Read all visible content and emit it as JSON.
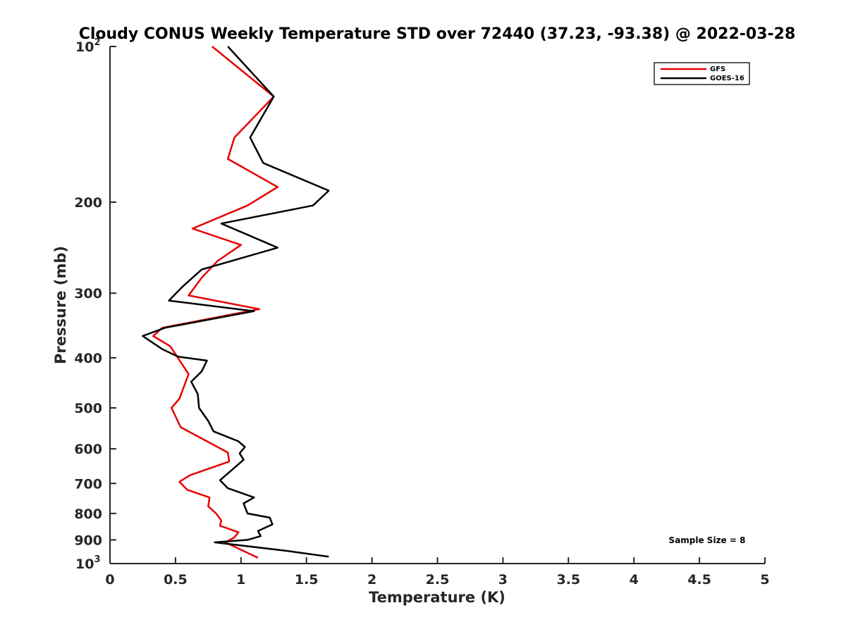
{
  "chart_data": {
    "type": "line",
    "title": "Cloudy CONUS Weekly Temperature STD over 72440 (37.23, -93.38) @ 2022-03-28",
    "xlabel": "Temperature (K)",
    "ylabel": "Pressure (mb)",
    "xlim": [
      0,
      5
    ],
    "ylim": [
      100,
      1000
    ],
    "yscale": "log",
    "y_reversed": true,
    "x_ticks": [
      "0",
      "0.5",
      "1",
      "1.5",
      "2",
      "2.5",
      "3",
      "3.5",
      "4",
      "4.5",
      "5"
    ],
    "x_tick_values": [
      0,
      0.5,
      1,
      1.5,
      2,
      2.5,
      3,
      3.5,
      4,
      4.5,
      5
    ],
    "y_tick_values": [
      100,
      200,
      300,
      400,
      500,
      600,
      700,
      800,
      900,
      1000
    ],
    "y_ticks": [
      {
        "base": "10",
        "exp": "2"
      },
      {
        "base": "200",
        "exp": ""
      },
      {
        "base": "300",
        "exp": ""
      },
      {
        "base": "400",
        "exp": ""
      },
      {
        "base": "500",
        "exp": ""
      },
      {
        "base": "600",
        "exp": ""
      },
      {
        "base": "700",
        "exp": ""
      },
      {
        "base": "800",
        "exp": ""
      },
      {
        "base": "900",
        "exp": ""
      },
      {
        "base": "10",
        "exp": "3"
      }
    ],
    "grid": false,
    "legend_position": "top-right",
    "annotation": "Sample Size = 8",
    "series": [
      {
        "name": "GFS",
        "color": "#e60000",
        "points": [
          [
            0.78,
            100
          ],
          [
            1.25,
            125
          ],
          [
            0.95,
            150
          ],
          [
            0.9,
            165
          ],
          [
            1.28,
            187
          ],
          [
            1.05,
            203
          ],
          [
            0.63,
            225
          ],
          [
            1.0,
            242
          ],
          [
            0.82,
            260
          ],
          [
            0.7,
            280
          ],
          [
            0.6,
            303
          ],
          [
            1.14,
            322
          ],
          [
            0.4,
            350
          ],
          [
            0.33,
            363
          ],
          [
            0.46,
            380
          ],
          [
            0.6,
            430
          ],
          [
            0.53,
            480
          ],
          [
            0.47,
            500
          ],
          [
            0.54,
            545
          ],
          [
            0.74,
            580
          ],
          [
            0.9,
            610
          ],
          [
            0.91,
            635
          ],
          [
            0.61,
            675
          ],
          [
            0.53,
            695
          ],
          [
            0.59,
            720
          ],
          [
            0.76,
            745
          ],
          [
            0.75,
            775
          ],
          [
            0.81,
            800
          ],
          [
            0.85,
            825
          ],
          [
            0.84,
            845
          ],
          [
            0.98,
            870
          ],
          [
            0.95,
            890
          ],
          [
            0.88,
            910
          ],
          [
            1.13,
            975
          ]
        ]
      },
      {
        "name": "GOES-16",
        "color": "#000000",
        "points": [
          [
            0.9,
            100
          ],
          [
            1.25,
            125
          ],
          [
            1.07,
            150
          ],
          [
            1.17,
            168
          ],
          [
            1.67,
            190
          ],
          [
            1.55,
            203
          ],
          [
            0.85,
            220
          ],
          [
            1.28,
            245
          ],
          [
            0.7,
            270
          ],
          [
            0.55,
            292
          ],
          [
            0.45,
            310
          ],
          [
            1.1,
            325
          ],
          [
            0.42,
            350
          ],
          [
            0.25,
            363
          ],
          [
            0.4,
            385
          ],
          [
            0.52,
            398
          ],
          [
            0.74,
            405
          ],
          [
            0.7,
            425
          ],
          [
            0.62,
            445
          ],
          [
            0.67,
            470
          ],
          [
            0.68,
            500
          ],
          [
            0.75,
            530
          ],
          [
            0.79,
            555
          ],
          [
            0.98,
            580
          ],
          [
            1.03,
            595
          ],
          [
            0.99,
            612
          ],
          [
            1.02,
            630
          ],
          [
            0.84,
            690
          ],
          [
            0.9,
            715
          ],
          [
            1.1,
            745
          ],
          [
            1.02,
            765
          ],
          [
            1.05,
            800
          ],
          [
            1.22,
            815
          ],
          [
            1.24,
            840
          ],
          [
            1.13,
            865
          ],
          [
            1.15,
            885
          ],
          [
            1.05,
            900
          ],
          [
            0.8,
            910
          ],
          [
            1.35,
            945
          ],
          [
            1.67,
            970
          ]
        ]
      }
    ]
  }
}
